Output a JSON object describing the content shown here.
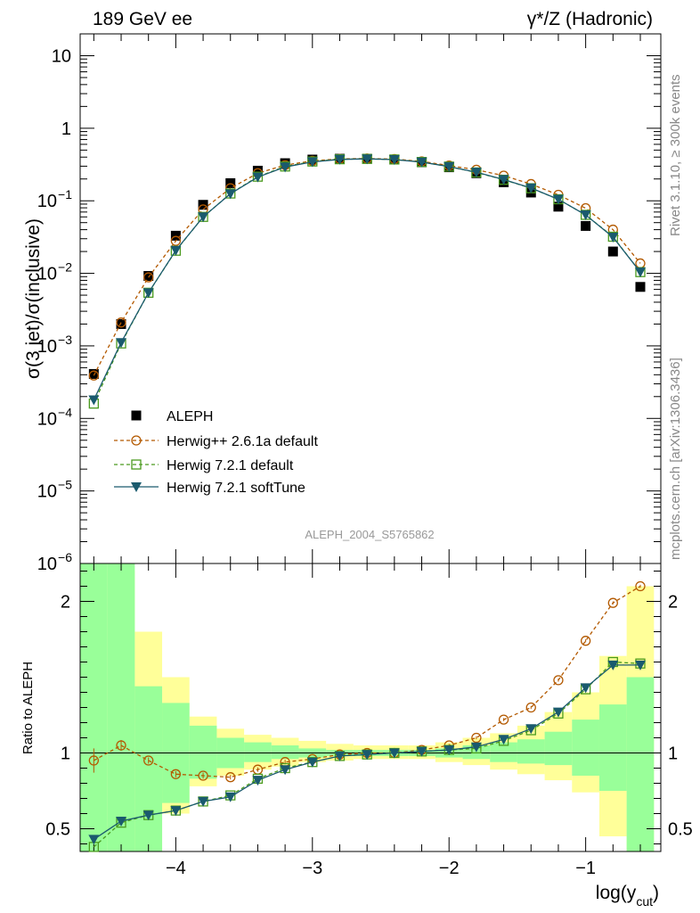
{
  "header": {
    "left": "189 GeV ee",
    "right": "γ*/Z (Hadronic)"
  },
  "side": {
    "rivet": "Rivet 3.1.10, ≥ 300k events",
    "mcplots": "mcplots.cern.ch [arXiv:1306.3436]"
  },
  "watermark": "ALEPH_2004_S5765862",
  "chart_data": {
    "type": "line",
    "xlabel": "log(y_cut)",
    "ylabel": "σ(3 jet)/σ(inclusive)",
    "ratio_ylabel": "Ratio to ALEPH",
    "xlim": [
      -4.7,
      -0.45
    ],
    "ylim": [
      1e-06,
      20
    ],
    "yscale": "log",
    "ratio_ylim": [
      0.35,
      2.25
    ],
    "x_ticks": [
      -4,
      -3,
      -2,
      -1
    ],
    "x_tick_labels": [
      "−4",
      "−3",
      "−2",
      "−1"
    ],
    "y_ticks": [
      1e-06,
      1e-05,
      0.0001,
      0.001,
      0.01,
      0.1,
      1,
      10
    ],
    "y_tick_labels": [
      {
        "base": "10",
        "exp": "−6"
      },
      {
        "base": "10",
        "exp": "−5"
      },
      {
        "base": "10",
        "exp": "−4"
      },
      {
        "base": "10",
        "exp": "−3"
      },
      {
        "base": "10",
        "exp": "−2"
      },
      {
        "base": "10",
        "exp": "−1"
      },
      {
        "base": "1",
        "exp": ""
      },
      {
        "base": "10",
        "exp": ""
      }
    ],
    "ratio_ticks": [
      0.5,
      1,
      2
    ],
    "ratio_tick_labels": [
      "0.5",
      "1",
      "2"
    ],
    "x": [
      -4.6,
      -4.4,
      -4.2,
      -4.0,
      -3.8,
      -3.6,
      -3.4,
      -3.2,
      -3.0,
      -2.8,
      -2.6,
      -2.4,
      -2.2,
      -2.0,
      -1.8,
      -1.6,
      -1.4,
      -1.2,
      -1.0,
      -0.8,
      -0.6
    ],
    "bin_edges": [
      -4.7,
      -4.5,
      -4.3,
      -4.1,
      -3.9,
      -3.7,
      -3.5,
      -3.3,
      -3.1,
      -2.9,
      -2.7,
      -2.5,
      -2.3,
      -2.1,
      -1.9,
      -1.7,
      -1.5,
      -1.3,
      -1.1,
      -0.9,
      -0.7,
      -0.5
    ],
    "series": [
      {
        "name": "ALEPH",
        "style": "data",
        "color": "#000000",
        "values": [
          0.00041,
          0.002,
          0.0092,
          0.033,
          0.088,
          0.175,
          0.26,
          0.33,
          0.37,
          0.38,
          0.38,
          0.37,
          0.34,
          0.29,
          0.24,
          0.18,
          0.13,
          0.083,
          0.045,
          0.02,
          0.0065
        ]
      },
      {
        "name": "Herwig++ 2.6.1a default",
        "style": "circle",
        "color": "#b35900",
        "values": [
          0.00039,
          0.0021,
          0.0088,
          0.028,
          0.076,
          0.149,
          0.24,
          0.31,
          0.355,
          0.378,
          0.383,
          0.376,
          0.349,
          0.306,
          0.268,
          0.222,
          0.17,
          0.121,
          0.079,
          0.04,
          0.0137
        ],
        "ratio": [
          0.95,
          1.05,
          0.95,
          0.86,
          0.85,
          0.84,
          0.89,
          0.94,
          0.96,
          0.99,
          1.0,
          1.0,
          1.02,
          1.05,
          1.1,
          1.22,
          1.3,
          1.48,
          1.74,
          1.99,
          2.1
        ]
      },
      {
        "name": "Herwig 7.2.1 default",
        "style": "square",
        "color": "#4a9a1e",
        "values": [
          0.00016,
          0.00108,
          0.0054,
          0.0205,
          0.06,
          0.126,
          0.215,
          0.297,
          0.348,
          0.374,
          0.378,
          0.371,
          0.343,
          0.296,
          0.246,
          0.195,
          0.149,
          0.105,
          0.064,
          0.032,
          0.0104
        ],
        "ratio": [
          0.38,
          0.54,
          0.59,
          0.62,
          0.68,
          0.72,
          0.83,
          0.9,
          0.94,
          0.98,
          0.99,
          1.0,
          1.01,
          1.02,
          1.03,
          1.08,
          1.15,
          1.26,
          1.42,
          1.6,
          1.59
        ]
      },
      {
        "name": "Herwig 7.2.1 softTune",
        "style": "triangle",
        "color": "#1a5a6e",
        "values": [
          0.00018,
          0.00111,
          0.0054,
          0.0207,
          0.06,
          0.125,
          0.212,
          0.292,
          0.344,
          0.372,
          0.378,
          0.37,
          0.342,
          0.296,
          0.248,
          0.196,
          0.15,
          0.105,
          0.064,
          0.0315,
          0.0104
        ],
        "ratio": [
          0.43,
          0.55,
          0.59,
          0.62,
          0.68,
          0.71,
          0.82,
          0.89,
          0.94,
          0.98,
          0.99,
          1.0,
          1.01,
          1.02,
          1.04,
          1.09,
          1.16,
          1.27,
          1.43,
          1.58,
          1.58
        ]
      }
    ],
    "ratio_error": [
      0.08,
      0.035,
      0.02,
      0.02,
      0.02,
      0.015,
      0.015,
      0.015,
      0.01,
      0.01,
      0.01,
      0.01,
      0.01,
      0.01,
      0.01,
      0.01,
      0.01,
      0.01,
      0.01,
      0.01,
      0.01
    ],
    "bands": {
      "green": [
        [
          0.2,
          2.5
        ],
        [
          0.33,
          2.5
        ],
        [
          0.33,
          1.44
        ],
        [
          0.67,
          1.33
        ],
        [
          0.83,
          1.18
        ],
        [
          0.9,
          1.1
        ],
        [
          0.94,
          1.07
        ],
        [
          0.96,
          1.05
        ],
        [
          0.97,
          1.03
        ],
        [
          0.98,
          1.02
        ],
        [
          0.98,
          1.02
        ],
        [
          0.98,
          1.02
        ],
        [
          0.98,
          1.02
        ],
        [
          0.97,
          1.03
        ],
        [
          0.96,
          1.05
        ],
        [
          0.94,
          1.07
        ],
        [
          0.93,
          1.09
        ],
        [
          0.92,
          1.14
        ],
        [
          0.85,
          1.22
        ],
        [
          0.75,
          1.32
        ],
        [
          0.3,
          1.5
        ]
      ],
      "yellow": [
        [
          0.2,
          2.5
        ],
        [
          0.33,
          2.2
        ],
        [
          0.3,
          1.8
        ],
        [
          0.6,
          1.5
        ],
        [
          0.78,
          1.24
        ],
        [
          0.85,
          1.16
        ],
        [
          0.89,
          1.12
        ],
        [
          0.91,
          1.1
        ],
        [
          0.94,
          1.08
        ],
        [
          0.95,
          1.06
        ],
        [
          0.96,
          1.05
        ],
        [
          0.96,
          1.05
        ],
        [
          0.96,
          1.05
        ],
        [
          0.94,
          1.07
        ],
        [
          0.92,
          1.1
        ],
        [
          0.89,
          1.13
        ],
        [
          0.86,
          1.18
        ],
        [
          0.82,
          1.27
        ],
        [
          0.74,
          1.4
        ],
        [
          0.45,
          1.64
        ],
        [
          0.3,
          2.1
        ]
      ]
    }
  }
}
